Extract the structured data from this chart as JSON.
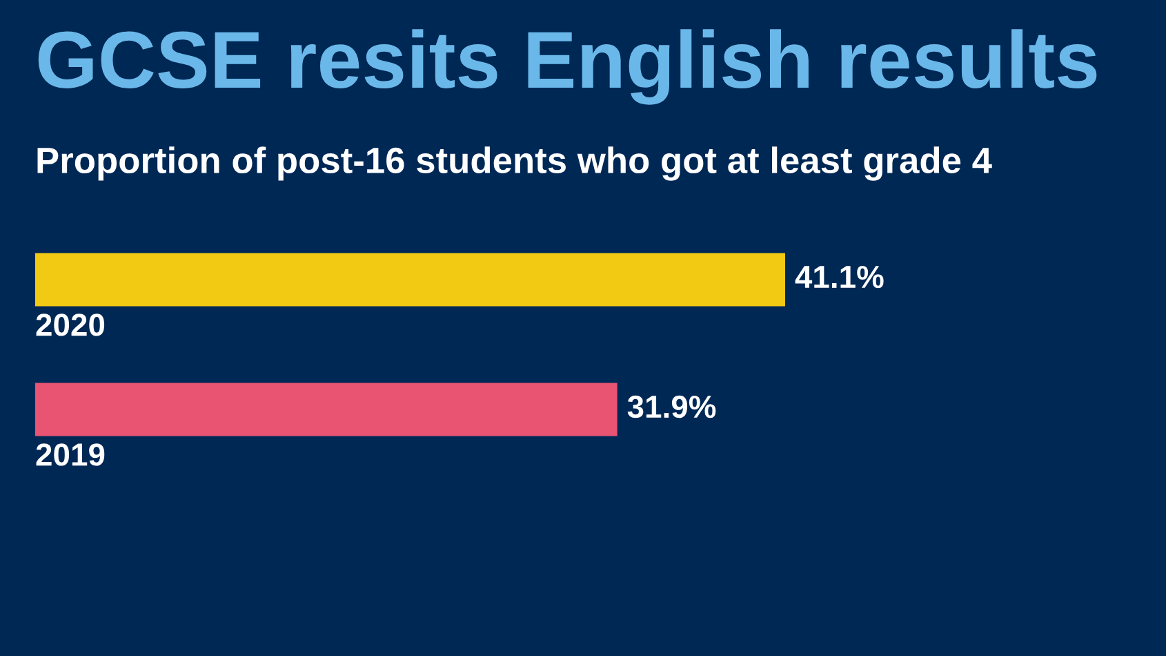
{
  "chart_data": {
    "type": "bar",
    "orientation": "horizontal",
    "title": "GCSE resits English results",
    "subtitle": "Proportion of post-16 students who got at least grade 4",
    "categories": [
      "2020",
      "2019"
    ],
    "values": [
      41.1,
      31.9
    ],
    "colors": [
      "#f2ca14",
      "#e95473"
    ],
    "value_labels": [
      "41.1%",
      "31.9%"
    ],
    "legend": false
  }
}
